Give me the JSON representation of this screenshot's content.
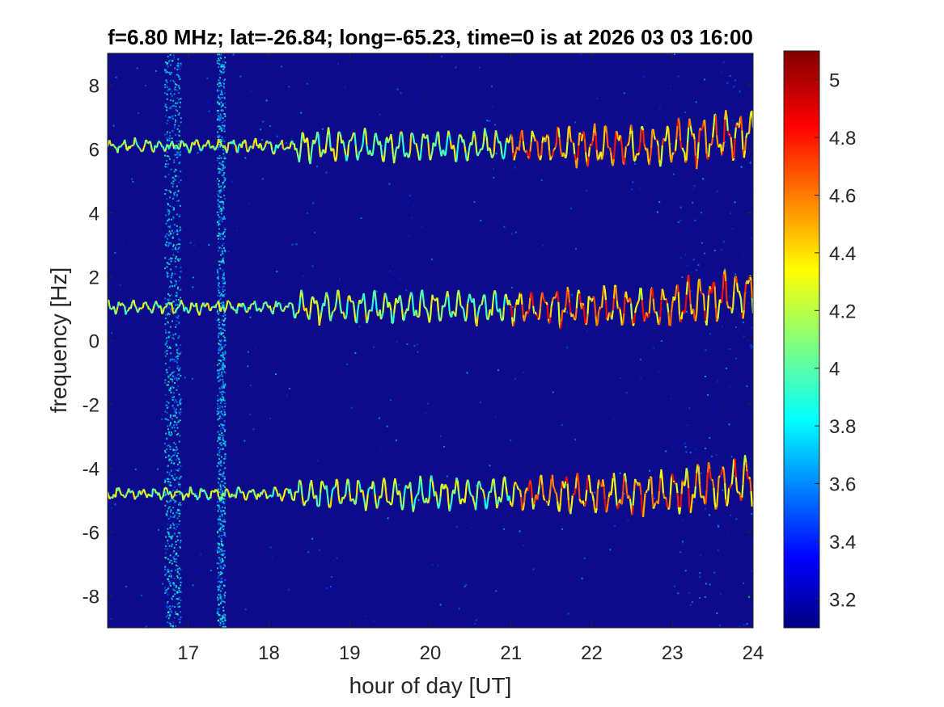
{
  "chart_data": {
    "type": "heatmap",
    "title": "f=6.80 MHz;  lat=-26.84; long=-65.23, time=0 is at 2026 03 03 16:00",
    "xlabel": "hour of day [UT]",
    "ylabel": "frequency [Hz]",
    "xlim": [
      16,
      24
    ],
    "ylim": [
      -9,
      9
    ],
    "xticks": [
      17,
      18,
      19,
      20,
      21,
      22,
      23,
      24
    ],
    "yticks": [
      -8,
      -6,
      -4,
      -2,
      0,
      2,
      4,
      6,
      8
    ],
    "colorbar": {
      "clim": [
        3.1,
        5.1
      ],
      "ticks": [
        3.2,
        3.4,
        3.6,
        3.8,
        4,
        4.2,
        4.4,
        4.6,
        4.8,
        5
      ],
      "colormap": "jet",
      "location": "right"
    },
    "background_color": "#0b0b8c",
    "traces": [
      {
        "baseline_hz": 6.1,
        "x_start": 16,
        "x_end": 24
      },
      {
        "baseline_hz": 1.05,
        "x_start": 16,
        "x_end": 24
      },
      {
        "baseline_hz": -4.8,
        "x_start": 16,
        "x_end": 24
      }
    ],
    "interference_bands_hour": [
      16.8,
      17.4
    ],
    "noisy_interval_hour": [
      23.0,
      24.0
    ]
  }
}
